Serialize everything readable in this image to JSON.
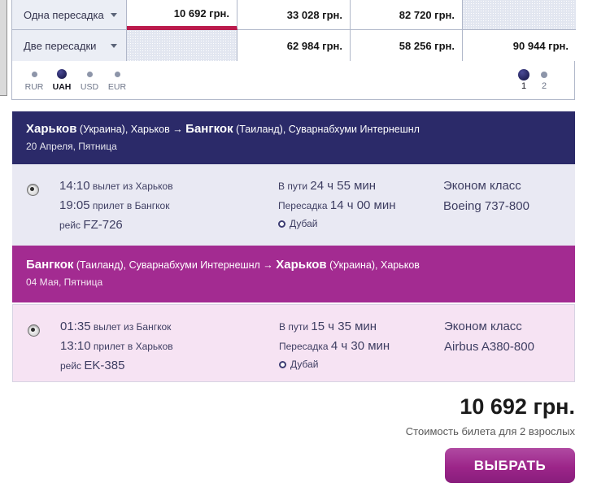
{
  "fare_matrix": {
    "rows": [
      {
        "label": "Одна пересадка",
        "cells": [
          {
            "value": "10 692 грн.",
            "state": "selected"
          },
          {
            "value": "33 028 грн."
          },
          {
            "value": "82 720 грн."
          },
          {
            "value": "",
            "state": "empty"
          }
        ]
      },
      {
        "label": "Две пересадки",
        "cells": [
          {
            "value": "",
            "state": "empty"
          },
          {
            "value": "62 984 грн."
          },
          {
            "value": "58 256 грн."
          },
          {
            "value": "90 944 грн."
          }
        ]
      }
    ]
  },
  "currencies": [
    {
      "code": "RUR",
      "selected": false
    },
    {
      "code": "UAH",
      "selected": true
    },
    {
      "code": "USD",
      "selected": false
    },
    {
      "code": "EUR",
      "selected": false
    }
  ],
  "pagination": {
    "pages": [
      {
        "label": "1",
        "selected": true
      },
      {
        "label": "2",
        "selected": false
      }
    ]
  },
  "segments": [
    {
      "direction": "outbound",
      "route": {
        "from_city": "Харьков",
        "from_tail": " (Украина), Харьков → ",
        "to_city": "Бангкок",
        "to_tail": " (Таиланд), Суварнабхуми Интернешнл"
      },
      "date": "20 Апреля, Пятница",
      "flight": {
        "depart_time": "14:10",
        "depart_label": "вылет из Харьков",
        "arrive_time": "19:05",
        "arrive_label": "прилет в Бангкок",
        "number_label": "рейс",
        "number": "FZ-726",
        "duration_label": "В пути",
        "duration": "24 ч 55 мин",
        "layover_label": "Пересадка",
        "layover": "14 ч 00 мин",
        "layover_city": "Дубай",
        "cabin": "Эконом класс",
        "aircraft": "Boeing 737-800"
      }
    },
    {
      "direction": "return",
      "route": {
        "from_city": "Бангкок",
        "from_tail": " (Таиланд), Суварнабхуми Интернешнл → ",
        "to_city": "Харьков",
        "to_tail": " (Украина), Харьков"
      },
      "date": "04 Мая, Пятница",
      "flight": {
        "depart_time": "01:35",
        "depart_label": "вылет из Бангкок",
        "arrive_time": "13:10",
        "arrive_label": "прилет в Харьков",
        "number_label": "рейс",
        "number": "EK-385",
        "duration_label": "В пути",
        "duration": "15 ч 35 мин",
        "layover_label": "Пересадка",
        "layover": "4 ч 30 мин",
        "layover_city": "Дубай",
        "cabin": "Эконом класс",
        "aircraft": "Airbus A380-800"
      }
    }
  ],
  "summary": {
    "total": "10 692 грн.",
    "note": "Стоимость билета для 2 взрослых",
    "button_label": "ВЫБРАТЬ"
  }
}
